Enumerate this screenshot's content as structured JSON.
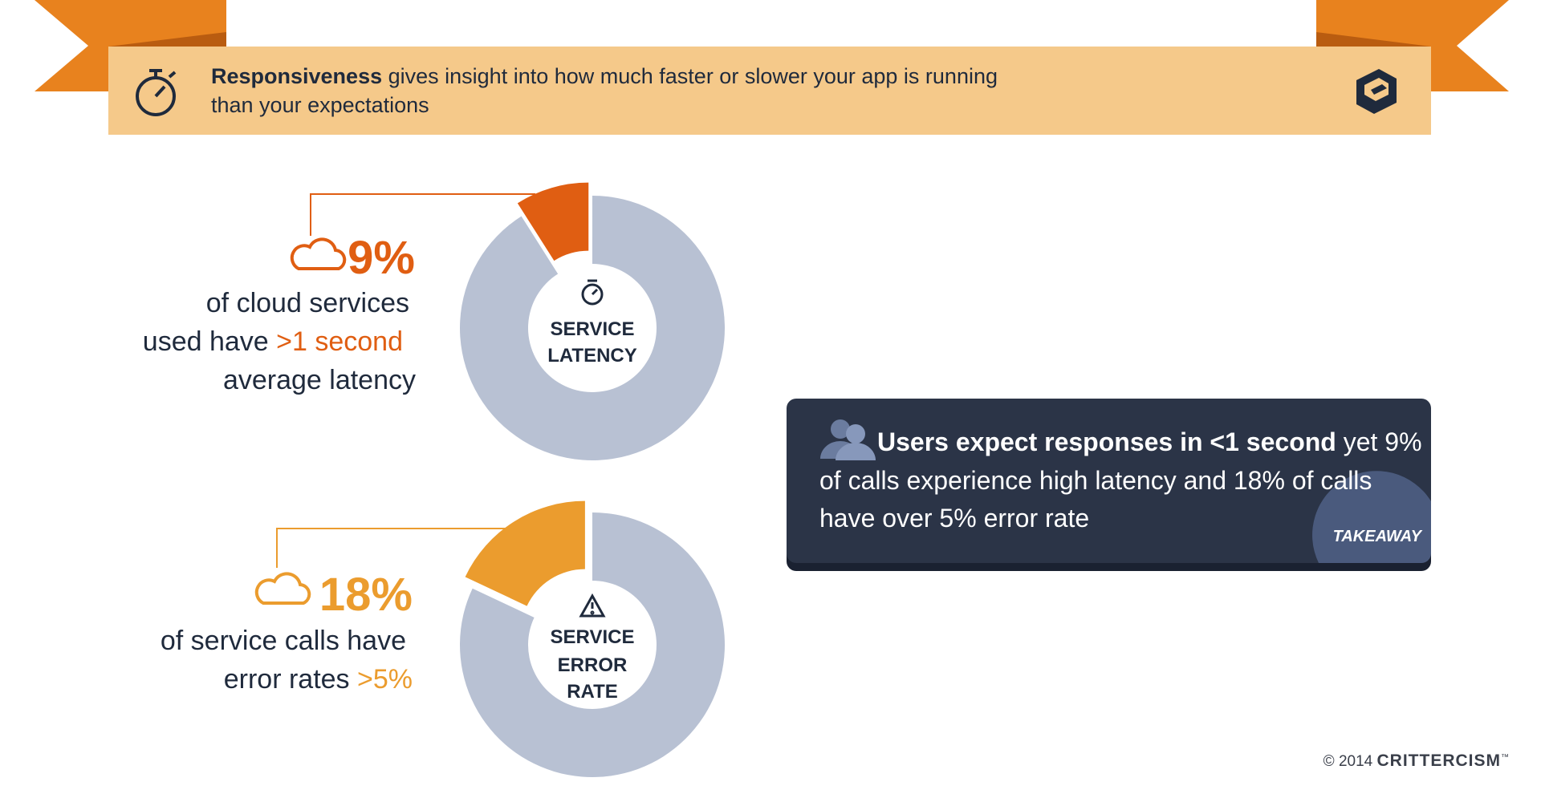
{
  "header": {
    "lead": "Responsiveness",
    "line1": " gives insight into how much faster or slower your app is running",
    "line2": "than your expectations"
  },
  "chart_data": [
    {
      "type": "pie",
      "values": [
        9
      ],
      "value_labels": [
        "9%"
      ],
      "color": "#e05e12",
      "center_label": [
        "SERVICE",
        "LATENCY"
      ],
      "description": [
        "of cloud services",
        "used have ",
        ">1 second",
        "average latency"
      ]
    },
    {
      "type": "pie",
      "values": [
        18
      ],
      "value_labels": [
        "18%"
      ],
      "color": "#eb9c2e",
      "center_label": [
        "SERVICE",
        "ERROR",
        "RATE"
      ],
      "description": [
        "of service calls have",
        "error rates ",
        ">5%"
      ]
    }
  ],
  "takeaway": {
    "lead": "Users expect responses in <1 second",
    "line1": " yet 9%",
    "line2": "of calls experience high latency and 18% of calls",
    "line3": "have over 5% error rate",
    "badge": "TAKEAWAY"
  },
  "footer": {
    "copyright": "© 2014 ",
    "brand": "CRITTERCISM",
    "trademark": "™"
  }
}
